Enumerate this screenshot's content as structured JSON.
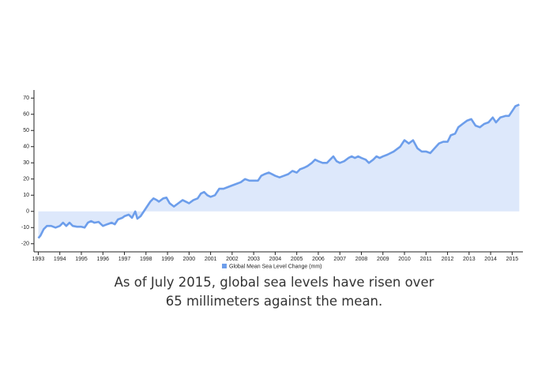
{
  "chart_data": {
    "type": "area",
    "color": "#6d9eeb",
    "fill": "#dde8fb",
    "series": [
      {
        "name": "Global Mean Sea Level Change (mm)",
        "color": "#6d9eeb",
        "x": [
          1993.0,
          1993.1,
          1993.25,
          1993.4,
          1993.6,
          1993.8,
          1994.0,
          1994.15,
          1994.3,
          1994.45,
          1994.6,
          1994.8,
          1995.0,
          1995.15,
          1995.3,
          1995.45,
          1995.6,
          1995.8,
          1996.0,
          1996.2,
          1996.4,
          1996.55,
          1996.7,
          1996.9,
          1997.0,
          1997.2,
          1997.35,
          1997.5,
          1997.6,
          1997.75,
          1998.0,
          1998.2,
          1998.35,
          1998.5,
          1998.6,
          1998.8,
          1998.95,
          1999.1,
          1999.3,
          1999.5,
          1999.7,
          1999.85,
          2000.0,
          2000.2,
          2000.4,
          2000.55,
          2000.7,
          2000.85,
          2001.0,
          2001.2,
          2001.4,
          2001.6,
          2001.8,
          2002.0,
          2002.2,
          2002.4,
          2002.6,
          2002.8,
          2003.0,
          2003.2,
          2003.35,
          2003.5,
          2003.7,
          2003.85,
          2004.0,
          2004.2,
          2004.4,
          2004.6,
          2004.8,
          2005.0,
          2005.15,
          2005.35,
          2005.5,
          2005.7,
          2005.85,
          2006.0,
          2006.2,
          2006.4,
          2006.55,
          2006.7,
          2006.85,
          2007.0,
          2007.2,
          2007.4,
          2007.55,
          2007.7,
          2007.85,
          2008.0,
          2008.2,
          2008.35,
          2008.55,
          2008.7,
          2008.85,
          2009.0,
          2009.2,
          2009.5,
          2009.8,
          2010.0,
          2010.2,
          2010.4,
          2010.6,
          2010.8,
          2011.0,
          2011.2,
          2011.4,
          2011.6,
          2011.8,
          2012.0,
          2012.15,
          2012.35,
          2012.5,
          2012.7,
          2012.9,
          2013.1,
          2013.3,
          2013.5,
          2013.7,
          2013.9,
          2014.1,
          2014.25,
          2014.45,
          2014.7,
          2014.85,
          2015.0,
          2015.15,
          2015.33
        ],
        "values": [
          -16.5,
          -15,
          -11,
          -9,
          -9,
          -10,
          -9,
          -7,
          -9,
          -7,
          -9,
          -9.5,
          -9.5,
          -10,
          -7,
          -6,
          -7,
          -6.5,
          -9,
          -8,
          -7,
          -8,
          -5,
          -4,
          -3,
          -2,
          -4,
          0,
          -4.5,
          -3,
          2,
          6,
          8,
          7,
          6,
          8,
          8.5,
          5,
          3,
          5,
          7,
          6,
          5,
          7,
          8,
          11,
          12,
          10,
          9,
          10,
          14,
          14,
          15,
          16,
          17,
          18,
          20,
          19,
          19,
          19,
          22,
          23,
          24,
          23,
          22,
          21,
          22,
          23,
          25,
          24,
          26,
          27,
          28,
          30,
          32,
          31,
          30,
          30,
          32,
          34,
          31,
          30,
          31,
          33,
          34,
          33,
          34,
          33,
          32,
          30,
          32,
          34,
          33,
          34,
          35,
          37,
          40,
          44,
          42,
          44,
          39,
          37,
          37,
          36,
          39,
          42,
          43,
          43,
          47,
          48,
          52,
          54,
          56,
          57,
          53,
          52,
          54,
          55,
          58,
          55,
          58,
          59,
          59,
          62,
          65,
          66
        ]
      }
    ],
    "xlim": [
      1992.8,
      2015.5
    ],
    "xticks": [
      1993,
      1994,
      1995,
      1996,
      1997,
      1998,
      1999,
      2000,
      2001,
      2002,
      2003,
      2004,
      2005,
      2006,
      2007,
      2008,
      2009,
      2010,
      2011,
      2012,
      2013,
      2014,
      2015
    ],
    "ylim": [
      -25,
      75
    ],
    "yticks": [
      -20,
      -10,
      0,
      10,
      20,
      30,
      40,
      50,
      60,
      70
    ]
  },
  "caption": "As of July 2015, global sea levels have risen over 65 millimeters against the mean."
}
